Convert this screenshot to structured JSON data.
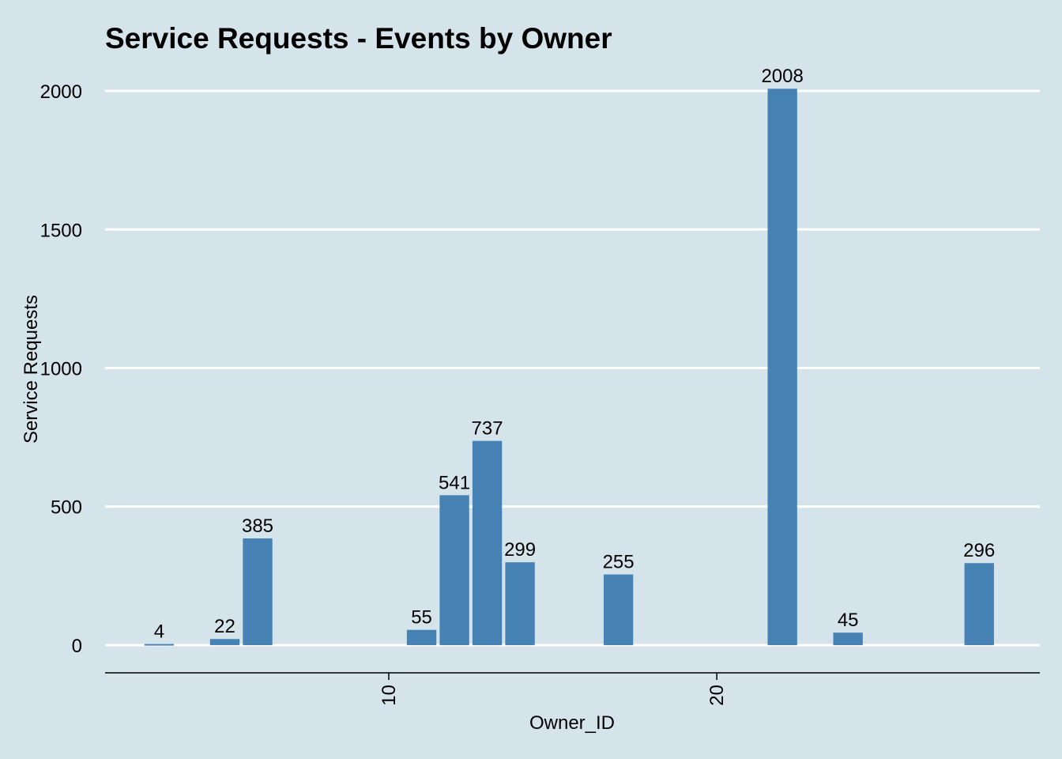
{
  "chart_data": {
    "type": "bar",
    "title": "Service Requests - Events by Owner",
    "xlabel": "Owner_ID",
    "ylabel": "Service Requests",
    "x": [
      3,
      5,
      6,
      11,
      12,
      13,
      14,
      17,
      22,
      24,
      28
    ],
    "values": [
      4,
      22,
      385,
      55,
      541,
      737,
      299,
      255,
      2008,
      45,
      296
    ],
    "xlim": [
      1.35,
      29.85
    ],
    "ylim": [
      -100,
      2100
    ],
    "yticks": [
      0,
      500,
      1000,
      1500,
      2000
    ],
    "xticks": [
      10,
      20
    ],
    "bar_color": "#4682b4",
    "background_color": "#d5e4eb",
    "grid_color": "#ffffff",
    "grid": "horizontal major",
    "legend": "none"
  }
}
